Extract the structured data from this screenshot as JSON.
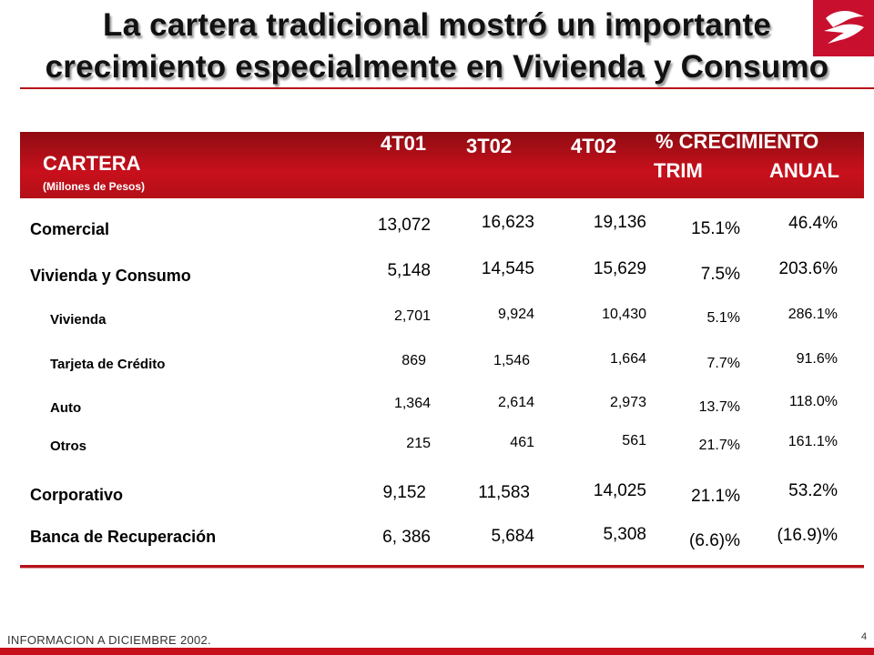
{
  "title": {
    "line1": "La cartera tradicional mostró un importante",
    "line2": "crecimiento especialmente en Vivienda y Consumo"
  },
  "colors": {
    "accent": "#c8101c",
    "text": "#000000"
  },
  "logo": {
    "icon": "banorte-logo-icon"
  },
  "table": {
    "header": {
      "label": "CARTERA",
      "units": "(Millones de Pesos)",
      "col1": "4T01",
      "col2": "3T02",
      "col3": "4T02",
      "growth": "% CRECIMIENTO",
      "trim": "TRIM",
      "anual": "ANUAL"
    },
    "rows": [
      {
        "label": "Comercial",
        "c1": "13,072",
        "c2": "16,623",
        "c3": "19,136",
        "trim": "15.1%",
        "anual": "46.4%"
      },
      {
        "label": "Vivienda y Consumo",
        "c1": "5,148",
        "c2": "14,545",
        "c3": "15,629",
        "trim": "7.5%",
        "anual": "203.6%"
      },
      {
        "label": "Vivienda",
        "c1": "2,701",
        "c2": "9,924",
        "c3": "10,430",
        "trim": "5.1%",
        "anual": "286.1%"
      },
      {
        "label": "Tarjeta de Crédito",
        "c1": "869",
        "c2": "1,546",
        "c3": "1,664",
        "trim": "7.7%",
        "anual": "91.6%"
      },
      {
        "label": "Auto",
        "c1": "1,364",
        "c2": "2,614",
        "c3": "2,973",
        "trim": "13.7%",
        "anual": "118.0%"
      },
      {
        "label": "Otros",
        "c1": "215",
        "c2": "461",
        "c3": "561",
        "trim": "21.7%",
        "anual": "161.1%"
      },
      {
        "label": "Corporativo",
        "c1": "9,152",
        "c2": "11,583",
        "c3": "14,025",
        "trim": "21.1%",
        "anual": "53.2%"
      },
      {
        "label": "Banca de Recuperación",
        "c1": "6, 386",
        "c2": "5,684",
        "c3": "5,308",
        "trim": "(6.6)%",
        "anual": "(16.9)%"
      }
    ]
  },
  "footer": {
    "text": "INFORMACION A  DICIEMBRE  2002.",
    "page": "4"
  }
}
